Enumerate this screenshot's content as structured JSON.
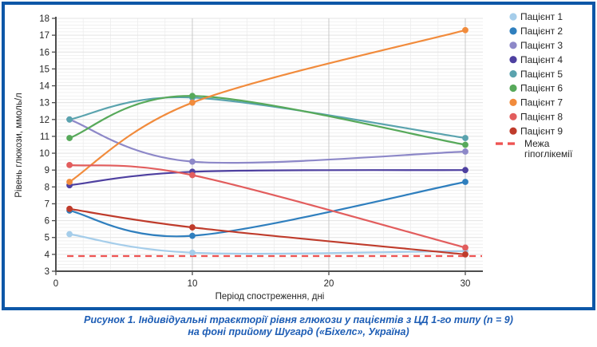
{
  "figure": {
    "caption": {
      "line1": "Рисунок 1. Індивідуальні траєкторії рівня глюкози у пацієнтів з ЦД 1-го типу (n = 9)",
      "line2": "на фоні прийому Шугард («Біхелс», Україна)"
    }
  },
  "colors": {
    "frame": "#0d57a7",
    "caption": "#1d5db5",
    "axis": "#4d4d4d",
    "grid_minor": "#ededed",
    "grid_unit_h": "#e3e3e3",
    "grid_major_v": "#c9c9c9",
    "tick_text": "#262626"
  },
  "chart_data": {
    "type": "line",
    "title": "",
    "xlabel": "Період спостреження, дні",
    "ylabel": "Рівень глюкози, ммоль/л",
    "x": [
      1,
      10,
      30
    ],
    "x_ticks": [
      0,
      10,
      20,
      30
    ],
    "y_ticks": [
      3,
      4,
      5,
      6,
      7,
      8,
      9,
      10,
      11,
      12,
      13,
      14,
      15,
      16,
      17,
      18
    ],
    "xlim": [
      0,
      31.3
    ],
    "ylim": [
      3,
      18
    ],
    "grid": true,
    "legend_position": "right",
    "series": [
      {
        "name": "Пацієнт 1",
        "color": "#a5cdea",
        "values": [
          5.2,
          4.1,
          4.2
        ]
      },
      {
        "name": "Пацієнт 2",
        "color": "#2f7fbe",
        "values": [
          6.6,
          5.1,
          8.3
        ]
      },
      {
        "name": "Пацієнт 3",
        "color": "#8d88c8",
        "values": [
          12.0,
          9.5,
          10.1
        ]
      },
      {
        "name": "Пацієнт 4",
        "color": "#4e40a0",
        "values": [
          8.1,
          8.9,
          9.0
        ]
      },
      {
        "name": "Пацієнт 5",
        "color": "#5aa3ae",
        "values": [
          12.0,
          13.3,
          10.9
        ]
      },
      {
        "name": "Пацієнт 6",
        "color": "#57a95a",
        "values": [
          10.9,
          13.4,
          10.5
        ]
      },
      {
        "name": "Пацієнт 7",
        "color": "#f18b3c",
        "values": [
          8.3,
          13.0,
          17.3
        ]
      },
      {
        "name": "Пацієнт 8",
        "color": "#e25d5d",
        "values": [
          9.3,
          8.7,
          4.4
        ]
      },
      {
        "name": "Пацієнт 9",
        "color": "#bf3b2b",
        "values": [
          6.7,
          5.6,
          4.0
        ]
      }
    ],
    "reference_line": {
      "label": "Межа гіпоглікемії",
      "label_lines": [
        "Межа",
        "гіпоглікемії"
      ],
      "value": 3.9,
      "color": "#ee5352",
      "style": "dashed"
    }
  }
}
